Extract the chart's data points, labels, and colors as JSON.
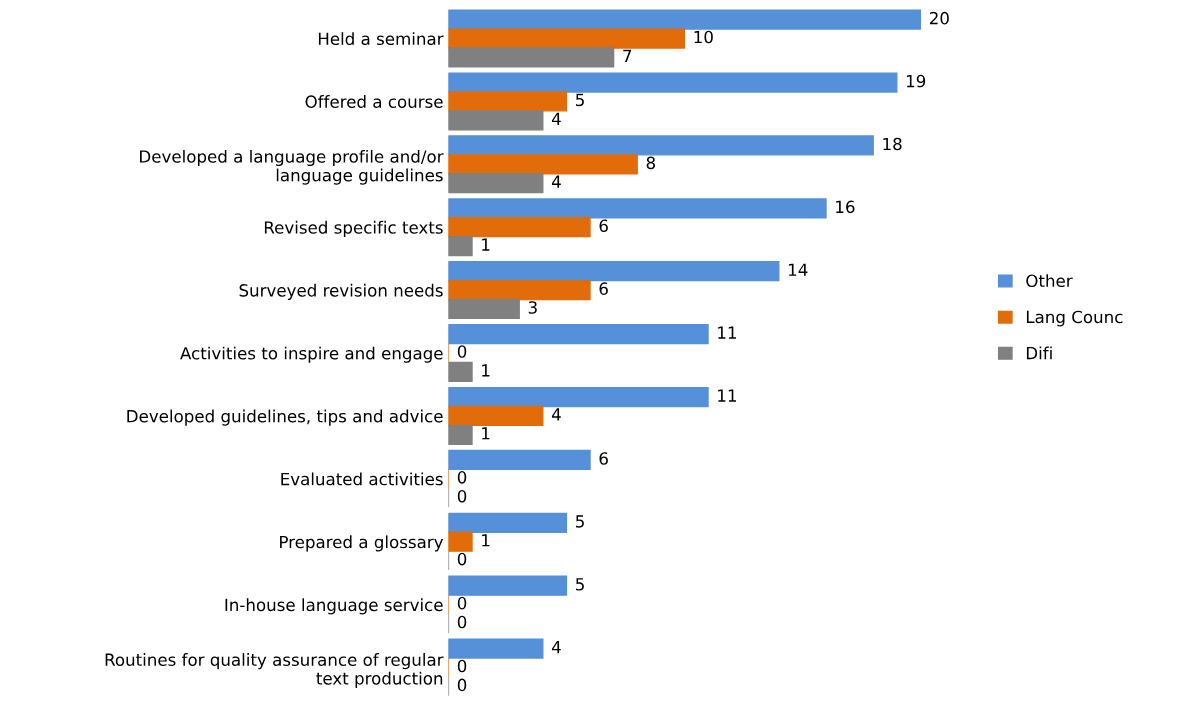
{
  "chart_data": {
    "type": "bar",
    "orientation": "horizontal",
    "data_labels": true,
    "legend": "right",
    "tick_labels": "y",
    "categories": [
      "Held a seminar",
      "Offered a course",
      "Developed a language profile and/or\nlanguage guidelines",
      "Revised specific texts",
      "Surveyed revision needs",
      "Activities to inspire and engage",
      "Developed guidelines, tips and advice",
      "Evaluated activities",
      "Prepared a glossary",
      "In-house language service",
      "Routines for quality assurance of regular\ntext production"
    ],
    "series": [
      {
        "name": "Other",
        "color": "#5590d8",
        "values": [
          20,
          19,
          18,
          16,
          14,
          11,
          11,
          6,
          5,
          5,
          4
        ]
      },
      {
        "name": "Lang Counc",
        "color": "#e36c0a",
        "values": [
          10,
          5,
          8,
          6,
          6,
          0,
          4,
          0,
          1,
          0,
          0
        ]
      },
      {
        "name": "Difi",
        "color": "#808080",
        "values": [
          7,
          4,
          4,
          1,
          3,
          1,
          1,
          0,
          0,
          0,
          0
        ]
      }
    ]
  }
}
